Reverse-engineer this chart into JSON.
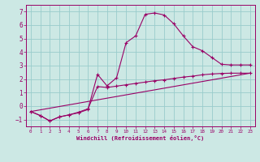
{
  "xlabel": "Windchill (Refroidissement éolien,°C)",
  "bg_color": "#cce8e4",
  "line_color": "#990066",
  "grid_color": "#99cccc",
  "xlim": [
    -0.5,
    23.5
  ],
  "ylim": [
    -1.5,
    7.5
  ],
  "xticks": [
    0,
    1,
    2,
    3,
    4,
    5,
    6,
    7,
    8,
    9,
    10,
    11,
    12,
    13,
    14,
    15,
    16,
    17,
    18,
    19,
    20,
    21,
    22,
    23
  ],
  "yticks": [
    -1,
    0,
    1,
    2,
    3,
    4,
    5,
    6,
    7
  ],
  "line1_x": [
    0,
    1,
    2,
    3,
    4,
    5,
    6,
    7,
    8,
    9,
    10,
    11,
    12,
    13,
    14,
    15,
    16,
    17,
    18,
    19,
    20,
    21,
    22,
    23
  ],
  "line1_y": [
    -0.4,
    -0.7,
    -1.1,
    -0.8,
    -0.65,
    -0.5,
    -0.25,
    2.35,
    1.5,
    2.1,
    4.7,
    5.2,
    6.8,
    6.9,
    6.75,
    6.1,
    5.2,
    4.4,
    4.1,
    3.6,
    3.1,
    3.05,
    3.05,
    3.05
  ],
  "line2_x": [
    0,
    1,
    2,
    3,
    4,
    5,
    6,
    7,
    8,
    9,
    10,
    11,
    12,
    13,
    14,
    15,
    16,
    17,
    18,
    19,
    20,
    21,
    22,
    23
  ],
  "line2_y": [
    -0.4,
    -0.7,
    -1.1,
    -0.8,
    -0.65,
    -0.45,
    -0.2,
    1.45,
    1.38,
    1.48,
    1.58,
    1.68,
    1.78,
    1.88,
    1.95,
    2.05,
    2.15,
    2.22,
    2.32,
    2.38,
    2.42,
    2.44,
    2.44,
    2.44
  ],
  "line3_x": [
    0,
    23
  ],
  "line3_y": [
    -0.4,
    2.44
  ]
}
